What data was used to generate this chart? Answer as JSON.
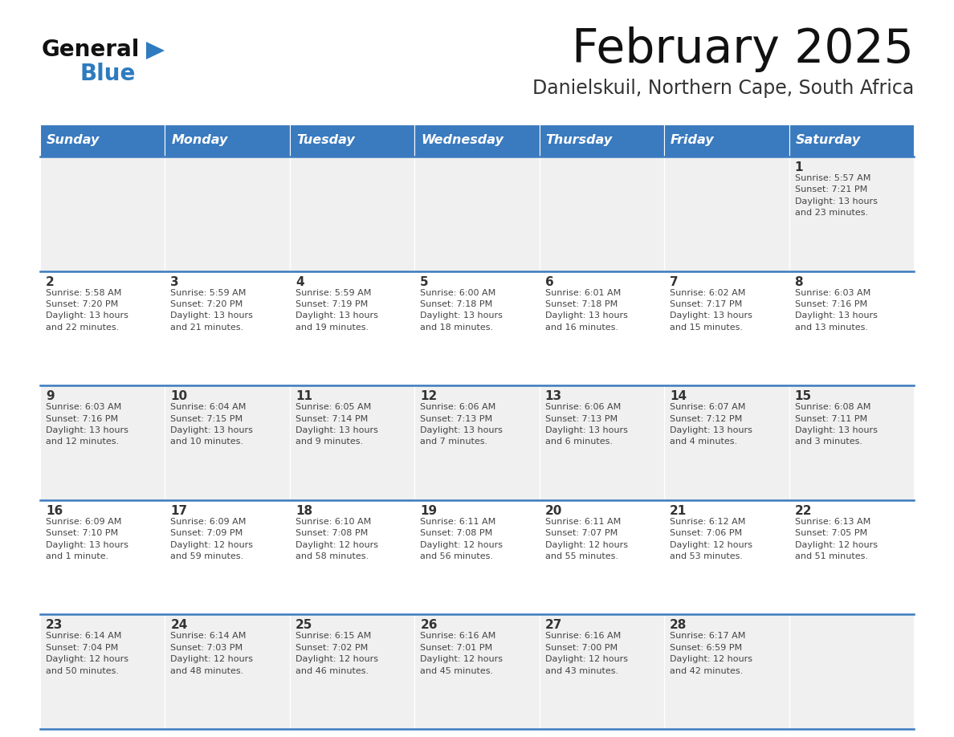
{
  "title": "February 2025",
  "subtitle": "Danielskuil, Northern Cape, South Africa",
  "days_of_week": [
    "Sunday",
    "Monday",
    "Tuesday",
    "Wednesday",
    "Thursday",
    "Friday",
    "Saturday"
  ],
  "header_bg": "#3a7abf",
  "header_text_color": "#ffffff",
  "cell_bg_odd": "#f0f0f0",
  "cell_bg_even": "#ffffff",
  "divider_color": "#3a7abf",
  "text_color": "#444444",
  "day_number_color": "#333333",
  "title_color": "#111111",
  "subtitle_color": "#333333",
  "logo_general_color": "#111111",
  "logo_blue_color": "#2e7bbf",
  "weeks": [
    [
      {
        "day": null,
        "info": null
      },
      {
        "day": null,
        "info": null
      },
      {
        "day": null,
        "info": null
      },
      {
        "day": null,
        "info": null
      },
      {
        "day": null,
        "info": null
      },
      {
        "day": null,
        "info": null
      },
      {
        "day": 1,
        "info": "Sunrise: 5:57 AM\nSunset: 7:21 PM\nDaylight: 13 hours\nand 23 minutes."
      }
    ],
    [
      {
        "day": 2,
        "info": "Sunrise: 5:58 AM\nSunset: 7:20 PM\nDaylight: 13 hours\nand 22 minutes."
      },
      {
        "day": 3,
        "info": "Sunrise: 5:59 AM\nSunset: 7:20 PM\nDaylight: 13 hours\nand 21 minutes."
      },
      {
        "day": 4,
        "info": "Sunrise: 5:59 AM\nSunset: 7:19 PM\nDaylight: 13 hours\nand 19 minutes."
      },
      {
        "day": 5,
        "info": "Sunrise: 6:00 AM\nSunset: 7:18 PM\nDaylight: 13 hours\nand 18 minutes."
      },
      {
        "day": 6,
        "info": "Sunrise: 6:01 AM\nSunset: 7:18 PM\nDaylight: 13 hours\nand 16 minutes."
      },
      {
        "day": 7,
        "info": "Sunrise: 6:02 AM\nSunset: 7:17 PM\nDaylight: 13 hours\nand 15 minutes."
      },
      {
        "day": 8,
        "info": "Sunrise: 6:03 AM\nSunset: 7:16 PM\nDaylight: 13 hours\nand 13 minutes."
      }
    ],
    [
      {
        "day": 9,
        "info": "Sunrise: 6:03 AM\nSunset: 7:16 PM\nDaylight: 13 hours\nand 12 minutes."
      },
      {
        "day": 10,
        "info": "Sunrise: 6:04 AM\nSunset: 7:15 PM\nDaylight: 13 hours\nand 10 minutes."
      },
      {
        "day": 11,
        "info": "Sunrise: 6:05 AM\nSunset: 7:14 PM\nDaylight: 13 hours\nand 9 minutes."
      },
      {
        "day": 12,
        "info": "Sunrise: 6:06 AM\nSunset: 7:13 PM\nDaylight: 13 hours\nand 7 minutes."
      },
      {
        "day": 13,
        "info": "Sunrise: 6:06 AM\nSunset: 7:13 PM\nDaylight: 13 hours\nand 6 minutes."
      },
      {
        "day": 14,
        "info": "Sunrise: 6:07 AM\nSunset: 7:12 PM\nDaylight: 13 hours\nand 4 minutes."
      },
      {
        "day": 15,
        "info": "Sunrise: 6:08 AM\nSunset: 7:11 PM\nDaylight: 13 hours\nand 3 minutes."
      }
    ],
    [
      {
        "day": 16,
        "info": "Sunrise: 6:09 AM\nSunset: 7:10 PM\nDaylight: 13 hours\nand 1 minute."
      },
      {
        "day": 17,
        "info": "Sunrise: 6:09 AM\nSunset: 7:09 PM\nDaylight: 12 hours\nand 59 minutes."
      },
      {
        "day": 18,
        "info": "Sunrise: 6:10 AM\nSunset: 7:08 PM\nDaylight: 12 hours\nand 58 minutes."
      },
      {
        "day": 19,
        "info": "Sunrise: 6:11 AM\nSunset: 7:08 PM\nDaylight: 12 hours\nand 56 minutes."
      },
      {
        "day": 20,
        "info": "Sunrise: 6:11 AM\nSunset: 7:07 PM\nDaylight: 12 hours\nand 55 minutes."
      },
      {
        "day": 21,
        "info": "Sunrise: 6:12 AM\nSunset: 7:06 PM\nDaylight: 12 hours\nand 53 minutes."
      },
      {
        "day": 22,
        "info": "Sunrise: 6:13 AM\nSunset: 7:05 PM\nDaylight: 12 hours\nand 51 minutes."
      }
    ],
    [
      {
        "day": 23,
        "info": "Sunrise: 6:14 AM\nSunset: 7:04 PM\nDaylight: 12 hours\nand 50 minutes."
      },
      {
        "day": 24,
        "info": "Sunrise: 6:14 AM\nSunset: 7:03 PM\nDaylight: 12 hours\nand 48 minutes."
      },
      {
        "day": 25,
        "info": "Sunrise: 6:15 AM\nSunset: 7:02 PM\nDaylight: 12 hours\nand 46 minutes."
      },
      {
        "day": 26,
        "info": "Sunrise: 6:16 AM\nSunset: 7:01 PM\nDaylight: 12 hours\nand 45 minutes."
      },
      {
        "day": 27,
        "info": "Sunrise: 6:16 AM\nSunset: 7:00 PM\nDaylight: 12 hours\nand 43 minutes."
      },
      {
        "day": 28,
        "info": "Sunrise: 6:17 AM\nSunset: 6:59 PM\nDaylight: 12 hours\nand 42 minutes."
      },
      {
        "day": null,
        "info": null
      }
    ]
  ]
}
